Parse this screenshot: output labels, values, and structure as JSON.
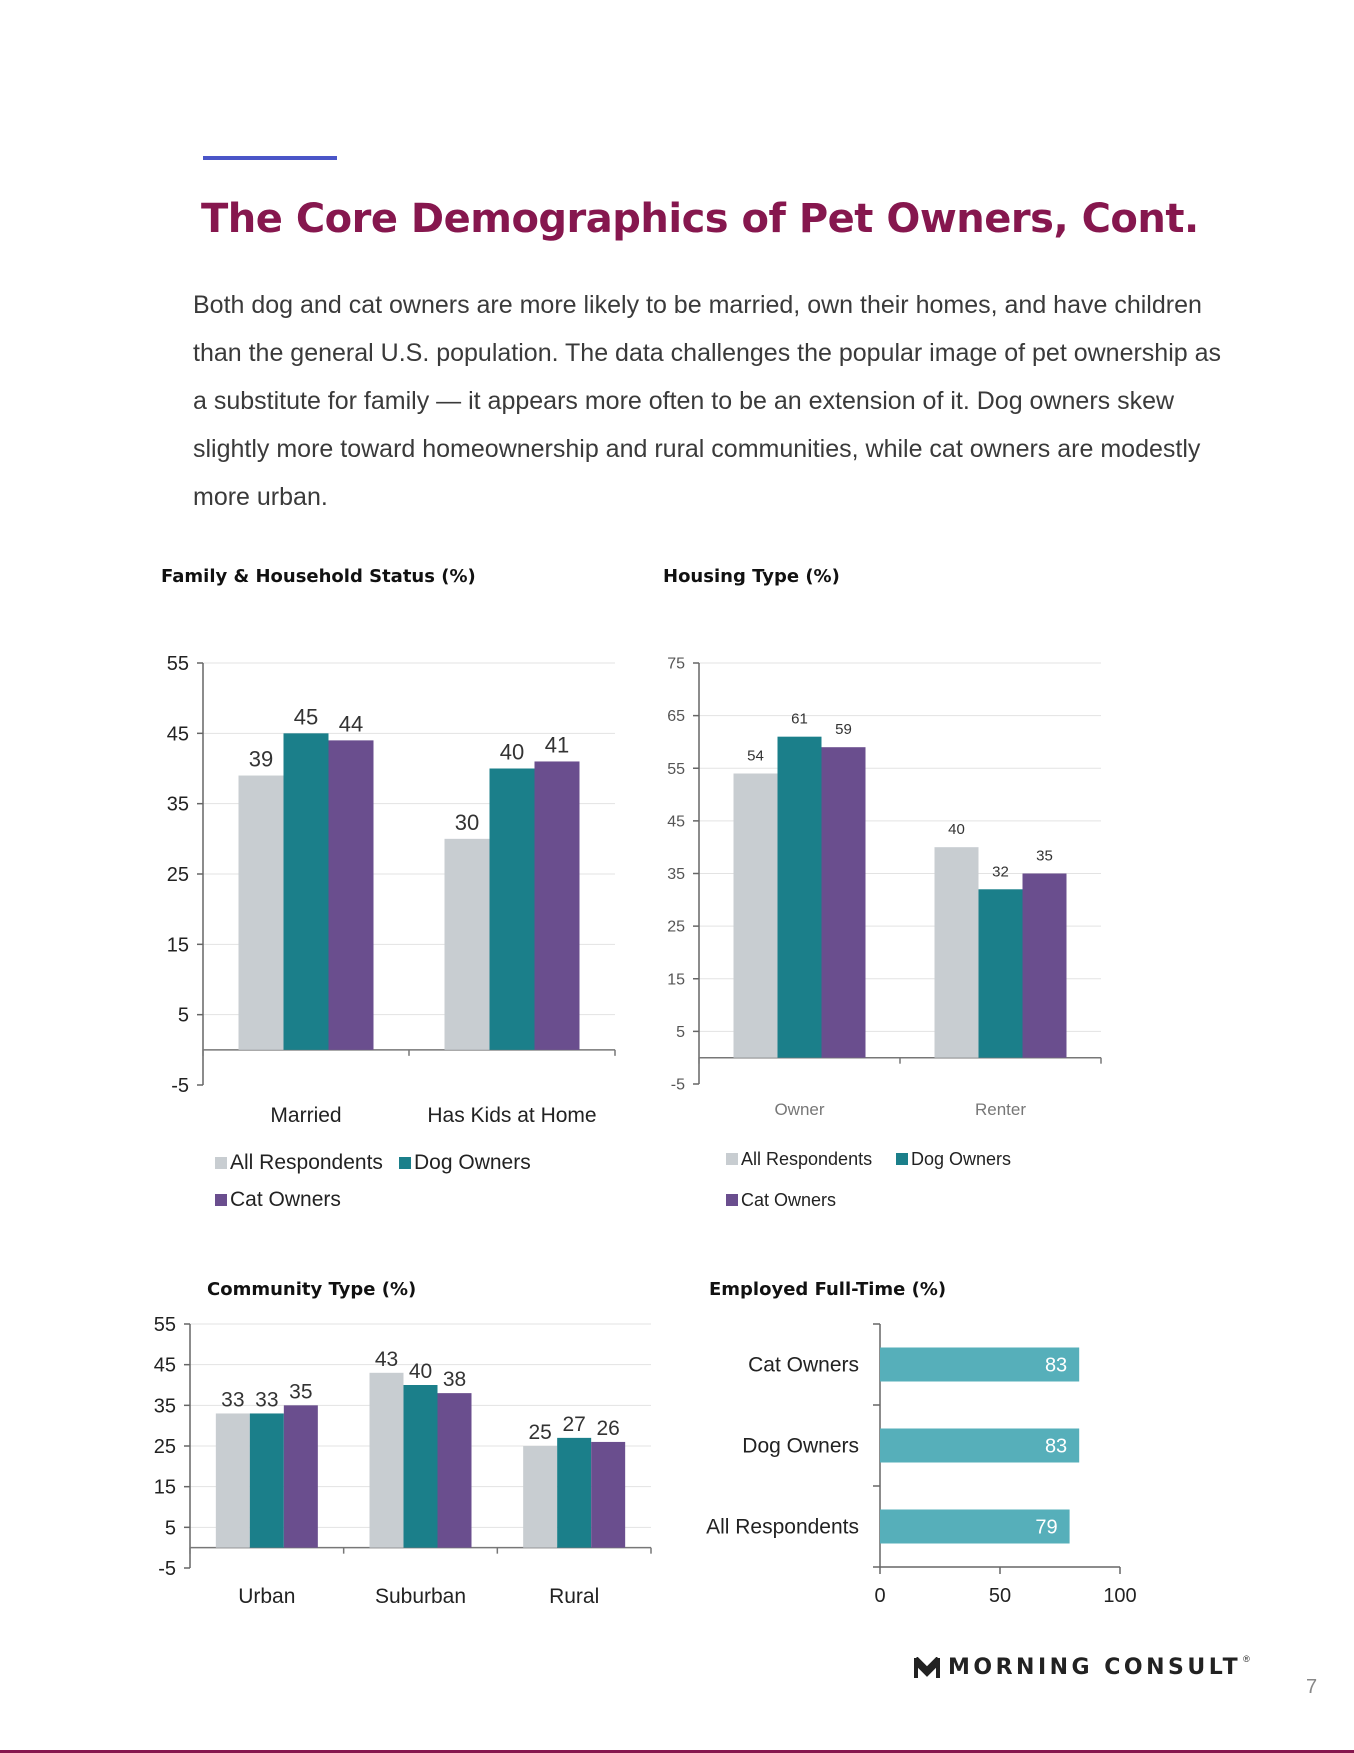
{
  "page": {
    "title": "The Core Demographics of Pet Owners, Cont.",
    "intro": "Both dog and cat owners are more likely to be married, own their homes, and have children than the general U.S. population. The data challenges the popular image of pet ownership as a substitute for family — it appears more often to be an extension of it. Dog owners skew slightly more toward homeownership and rural communities, while cat owners are modestly more urban.",
    "brand": "MORNING CONSULT",
    "brand_reg": "®",
    "page_number": "7"
  },
  "colors": {
    "title": "#86174e",
    "accent_line": "#4a55c8",
    "all_respondents": "#c8cdd1",
    "dog_owners": "#1b7f8a",
    "cat_owners": "#6a4e8e",
    "employed_bar": "#56afba"
  },
  "icons": {
    "brand_logo": "morning-consult-logo-icon"
  },
  "chart_data": [
    {
      "type": "bar",
      "title": "Family & Household Status (%)",
      "categories": [
        "Married",
        "Has Kids at Home"
      ],
      "series": [
        {
          "name": "All Respondents",
          "values": [
            39,
            30
          ]
        },
        {
          "name": "Dog Owners",
          "values": [
            45,
            40
          ]
        },
        {
          "name": "Cat Owners",
          "values": [
            44,
            41
          ]
        }
      ],
      "ylim": [
        -5,
        55
      ],
      "yticks": [
        -5,
        5,
        15,
        25,
        35,
        45,
        55
      ],
      "grid": true,
      "legend": "bottom"
    },
    {
      "type": "bar",
      "title": "Housing Type (%)",
      "categories": [
        "Owner",
        "Renter"
      ],
      "series": [
        {
          "name": "All Respondents",
          "values": [
            54,
            40
          ]
        },
        {
          "name": "Dog Owners",
          "values": [
            61,
            32
          ]
        },
        {
          "name": "Cat Owners",
          "values": [
            59,
            35
          ]
        }
      ],
      "ylim": [
        -5,
        75
      ],
      "yticks": [
        -5,
        5,
        15,
        25,
        35,
        45,
        55,
        65,
        75
      ],
      "grid": true,
      "legend": "bottom"
    },
    {
      "type": "bar",
      "title": "Community Type (%)",
      "categories": [
        "Urban",
        "Suburban",
        "Rural"
      ],
      "series": [
        {
          "name": "All Respondents",
          "values": [
            33,
            43,
            25
          ]
        },
        {
          "name": "Dog Owners",
          "values": [
            33,
            40,
            27
          ]
        },
        {
          "name": "Cat Owners",
          "values": [
            35,
            38,
            26
          ]
        }
      ],
      "ylim": [
        -5,
        55
      ],
      "yticks": [
        -5,
        5,
        15,
        25,
        35,
        45,
        55
      ],
      "grid": true,
      "legend": "none"
    },
    {
      "type": "bar",
      "orientation": "horizontal",
      "title": "Employed Full-Time (%)",
      "categories": [
        "Cat Owners",
        "Dog Owners",
        "All Respondents"
      ],
      "values": [
        83,
        83,
        79
      ],
      "xlim": [
        0,
        100
      ],
      "xticks": [
        0,
        50,
        100
      ],
      "grid": false,
      "legend": "none"
    }
  ]
}
